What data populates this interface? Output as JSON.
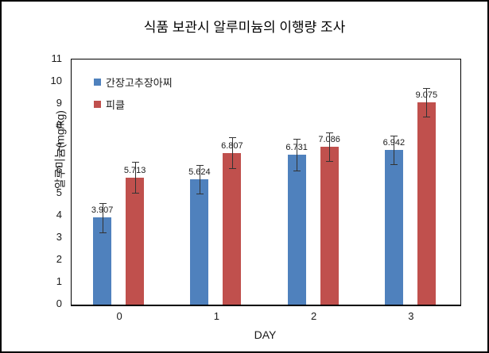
{
  "title": "식품 보관시 알루미늄의 이행량 조사",
  "chart_data": {
    "type": "bar",
    "title": "식품 보관시 알루미늄의 이행량 조사",
    "categories": [
      "0",
      "1",
      "2",
      "3"
    ],
    "series": [
      {
        "name": "간장고추장아찌",
        "color": "#4F81BD",
        "values": [
          3.907,
          5.624,
          6.731,
          6.942
        ],
        "errors": [
          0.65,
          0.65,
          0.7,
          0.65
        ]
      },
      {
        "name": "피클",
        "color": "#C0504D",
        "values": [
          5.713,
          6.807,
          7.086,
          9.075
        ],
        "errors": [
          0.7,
          0.7,
          0.65,
          0.65
        ]
      }
    ],
    "value_labels": [
      "3.907",
      "5.624",
      "6.731",
      "6.942",
      "5.713",
      "6.807",
      "7.086",
      "9.075"
    ],
    "xlabel": "DAY",
    "ylabel": "알루미늄(mg/kg)",
    "ylim": [
      0,
      11
    ],
    "ytick_step": 1,
    "yticks": [
      0,
      1,
      2,
      3,
      4,
      5,
      6,
      7,
      8,
      9,
      10,
      11
    ],
    "grid": false,
    "legend_position": "top-left-inside",
    "error_bars": true
  }
}
